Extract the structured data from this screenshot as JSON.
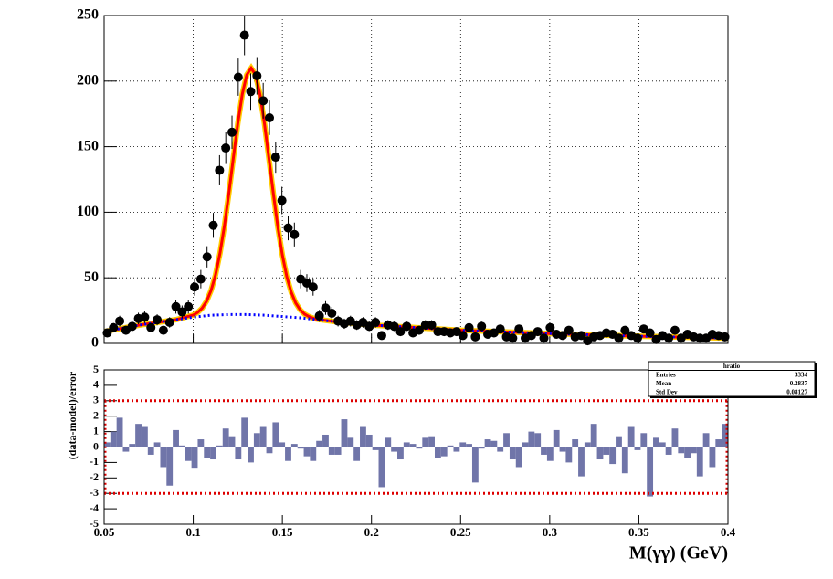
{
  "chart_data": [
    {
      "type": "scatter",
      "xlim": [
        0.05,
        0.4
      ],
      "xticks": [
        0.05,
        0.1,
        0.15,
        0.2,
        0.25,
        0.3,
        0.35,
        0.4
      ],
      "show_xtick_labels": false,
      "ylim": [
        0,
        250
      ],
      "yticks": [
        0,
        50,
        100,
        150,
        200,
        250
      ],
      "grid": true,
      "points": {
        "color": "#000000",
        "x": [
          0.05175,
          0.05525,
          0.05875,
          0.06225,
          0.06575,
          0.06925,
          0.07275,
          0.07625,
          0.07975,
          0.08325,
          0.08675,
          0.09025,
          0.09375,
          0.09725,
          0.10075,
          0.10425,
          0.10775,
          0.11125,
          0.11475,
          0.11825,
          0.12175,
          0.12525,
          0.12875,
          0.13225,
          0.13575,
          0.13925,
          0.14275,
          0.14625,
          0.14975,
          0.15325,
          0.15675,
          0.16025,
          0.16375,
          0.16725,
          0.17075,
          0.17425,
          0.17775,
          0.18125,
          0.18475,
          0.18825,
          0.19175,
          0.19525,
          0.19875,
          0.20225,
          0.20575,
          0.20925,
          0.21275,
          0.21625,
          0.21975,
          0.22325,
          0.22675,
          0.23025,
          0.23375,
          0.23725,
          0.24075,
          0.24425,
          0.24775,
          0.25125,
          0.25475,
          0.25825,
          0.26175,
          0.26525,
          0.26875,
          0.27225,
          0.27575,
          0.27925,
          0.28275,
          0.28625,
          0.28975,
          0.29325,
          0.29675,
          0.30025,
          0.30375,
          0.30725,
          0.31075,
          0.31425,
          0.31775,
          0.32125,
          0.32475,
          0.32825,
          0.33175,
          0.33525,
          0.33875,
          0.34225,
          0.34575,
          0.34925,
          0.35275,
          0.35625,
          0.35975,
          0.36325,
          0.36675,
          0.37025,
          0.37375,
          0.37725,
          0.38075,
          0.38425,
          0.38775,
          0.39125,
          0.39475,
          0.39825
        ],
        "values": [
          8,
          12,
          17,
          10,
          13,
          19,
          20,
          12,
          18,
          10,
          16,
          28,
          24,
          28,
          43,
          49,
          66,
          90,
          132,
          149,
          161,
          203,
          235,
          192,
          204,
          185,
          172,
          142,
          109,
          88,
          83,
          49,
          46,
          43,
          21,
          27,
          23,
          17,
          15,
          17,
          14,
          16,
          13,
          16,
          6,
          14,
          13,
          9,
          13,
          8,
          10,
          14,
          14,
          9,
          9,
          8,
          9,
          6,
          12,
          5,
          13,
          7,
          8,
          11,
          5,
          4,
          11,
          4,
          6,
          9,
          4,
          12,
          7,
          6,
          10,
          5,
          6,
          2,
          5,
          6,
          8,
          7,
          4,
          10,
          6,
          4,
          11,
          8,
          3,
          6,
          4,
          10,
          4,
          7,
          5,
          4,
          4,
          7,
          6,
          5
        ],
        "errors": [
          2.8,
          3.5,
          4.1,
          3.2,
          3.6,
          4.4,
          4.5,
          3.5,
          4.2,
          3.2,
          4,
          5.3,
          4.9,
          5.3,
          6.6,
          7,
          8.1,
          9.5,
          11.5,
          12.2,
          12.7,
          14.2,
          15.3,
          13.9,
          14.3,
          13.6,
          13.1,
          11.9,
          10.4,
          9.4,
          9.1,
          7,
          6.8,
          6.6,
          4.6,
          5.2,
          4.8,
          4.1,
          3.9,
          4.1,
          3.7,
          4,
          3.6,
          4,
          2.4,
          3.7,
          3.6,
          3,
          3.6,
          2.8,
          3.2,
          3.7,
          3.7,
          3,
          3,
          2.8,
          3,
          2.4,
          3.5,
          2.2,
          3.6,
          2.6,
          2.8,
          3.3,
          2.2,
          2,
          3.3,
          2,
          2.4,
          3,
          2,
          3.5,
          2.6,
          2.4,
          3.2,
          2.2,
          2.4,
          1.4,
          2.2,
          2.4,
          2.8,
          2.6,
          2,
          3.2,
          2.4,
          2,
          3.3,
          2.8,
          1.7,
          2.4,
          2,
          3.2,
          2,
          2.6,
          2.2,
          2,
          2,
          2.6,
          2.4,
          2.2
        ]
      },
      "fit": {
        "color": "#ff0000",
        "band_color": "#ffcc00",
        "x": [
          0.05,
          0.07,
          0.09,
          0.1,
          0.1025,
          0.105,
          0.1075,
          0.11,
          0.1125,
          0.115,
          0.1175,
          0.12,
          0.1225,
          0.125,
          0.1275,
          0.13,
          0.1325,
          0.135,
          0.1375,
          0.14,
          0.1425,
          0.145,
          0.1475,
          0.15,
          0.1525,
          0.155,
          0.1575,
          0.16,
          0.1625,
          0.165,
          0.1675,
          0.17,
          0.18,
          0.2,
          0.25,
          0.3,
          0.35,
          0.4
        ],
        "values": [
          9,
          14,
          18,
          21.6,
          23.6,
          26.9,
          32.2,
          40.4,
          52.2,
          68.7,
          89.7,
          114.6,
          141.5,
          167.7,
          189.9,
          204.7,
          209.9,
          204.5,
          189.5,
          167.2,
          140.7,
          113.6,
          88.5,
          67.4,
          50.8,
          38.9,
          30.8,
          25.6,
          22.3,
          20.4,
          19.1,
          18.3,
          16.5,
          14,
          10,
          7.5,
          5.5,
          4
        ]
      },
      "background": {
        "color": "#0000ff",
        "x": [
          0.05,
          0.07,
          0.09,
          0.1,
          0.11,
          0.12,
          0.13,
          0.14,
          0.15,
          0.16,
          0.17,
          0.18,
          0.2,
          0.25,
          0.3,
          0.35,
          0.4
        ],
        "values": [
          9,
          14,
          18,
          20,
          21.5,
          22,
          22,
          21.5,
          20.5,
          19.5,
          18,
          16.5,
          14,
          10,
          7.5,
          5.5,
          4
        ]
      }
    },
    {
      "type": "histogram",
      "xlabel": "M(γγ) (GeV)",
      "ylabel": "(data-model)/error",
      "xlim": [
        0.05,
        0.4
      ],
      "xticks": [
        0.05,
        0.1,
        0.15,
        0.2,
        0.25,
        0.3,
        0.35,
        0.4
      ],
      "show_xtick_labels": true,
      "ylim": [
        -5,
        5
      ],
      "yticks": [
        -5,
        -4,
        -3,
        -2,
        -1,
        0,
        1,
        2,
        3,
        4,
        5
      ],
      "grid": false,
      "color": "#7075a9",
      "bins": [
        0.05,
        0.0535,
        0.057,
        0.0605,
        0.064,
        0.0675,
        0.071,
        0.0745,
        0.078,
        0.0815,
        0.085,
        0.0885,
        0.092,
        0.0955,
        0.099,
        0.1025,
        0.106,
        0.1095,
        0.113,
        0.1165,
        0.12,
        0.1235,
        0.127,
        0.1305,
        0.134,
        0.1375,
        0.141,
        0.1445,
        0.148,
        0.1515,
        0.155,
        0.1585,
        0.162,
        0.1655,
        0.169,
        0.1725,
        0.176,
        0.1795,
        0.183,
        0.1865,
        0.19,
        0.1935,
        0.197,
        0.2005,
        0.204,
        0.2075,
        0.211,
        0.2145,
        0.218,
        0.2215,
        0.225,
        0.2285,
        0.232,
        0.2355,
        0.239,
        0.2425,
        0.246,
        0.2495,
        0.253,
        0.2565,
        0.26,
        0.2635,
        0.267,
        0.2705,
        0.274,
        0.2775,
        0.281,
        0.2845,
        0.288,
        0.2915,
        0.295,
        0.2985,
        0.302,
        0.3055,
        0.309,
        0.3125,
        0.316,
        0.3195,
        0.323,
        0.3265,
        0.33,
        0.3335,
        0.337,
        0.3405,
        0.344,
        0.3475,
        0.351,
        0.3545,
        0.358,
        0.3615,
        0.365,
        0.3685,
        0.372,
        0.3755,
        0.379,
        0.3825,
        0.386,
        0.3895,
        0.393,
        0.3965,
        0.4
      ],
      "values": [
        0.3,
        1.0,
        1.9,
        -0.3,
        0.2,
        1.5,
        1.3,
        -0.5,
        0.3,
        -1.3,
        -2.5,
        1.1,
        0.1,
        -0.9,
        -1.4,
        0.5,
        -0.7,
        -0.8,
        0.1,
        1.2,
        0.7,
        -0.8,
        1.9,
        -1.0,
        0.9,
        1.3,
        -0.4,
        1.6,
        0.3,
        -0.9,
        0.2,
        -0.1,
        -0.6,
        -0.9,
        0.4,
        0.8,
        -0.5,
        -0.5,
        1.8,
        0.6,
        -0.9,
        1.3,
        0.8,
        -0.2,
        -2.6,
        0.6,
        -0.3,
        -0.8,
        0.3,
        0.2,
        -0.1,
        0.6,
        0.7,
        -0.7,
        -0.6,
        0.1,
        -0.3,
        0.3,
        0.2,
        -2.3,
        -0.1,
        0.5,
        0.4,
        -0.3,
        0.9,
        -0.8,
        -1.3,
        0.3,
        1.0,
        0.9,
        -0.5,
        -0.9,
        1.1,
        -0.3,
        -1.0,
        0.5,
        -1.9,
        0.3,
        1.5,
        -0.8,
        -0.5,
        -1.1,
        0.7,
        -1.7,
        1.3,
        -0.2,
        0.9,
        -3.2,
        0.6,
        0.3,
        -0.5,
        1.2,
        -0.4,
        -0.7,
        -0.4,
        -1.9,
        0.9,
        -1.3,
        0.5,
        1.5
      ],
      "hlines": [
        3,
        -3
      ],
      "hline_color": "#dd0000",
      "stats": {
        "title": "hratio",
        "rows": [
          {
            "label": "Entries",
            "value": 3334
          },
          {
            "label": "Mean",
            "value": 0.2837
          },
          {
            "label": "Std Dev",
            "value": 0.08127
          }
        ]
      }
    }
  ]
}
